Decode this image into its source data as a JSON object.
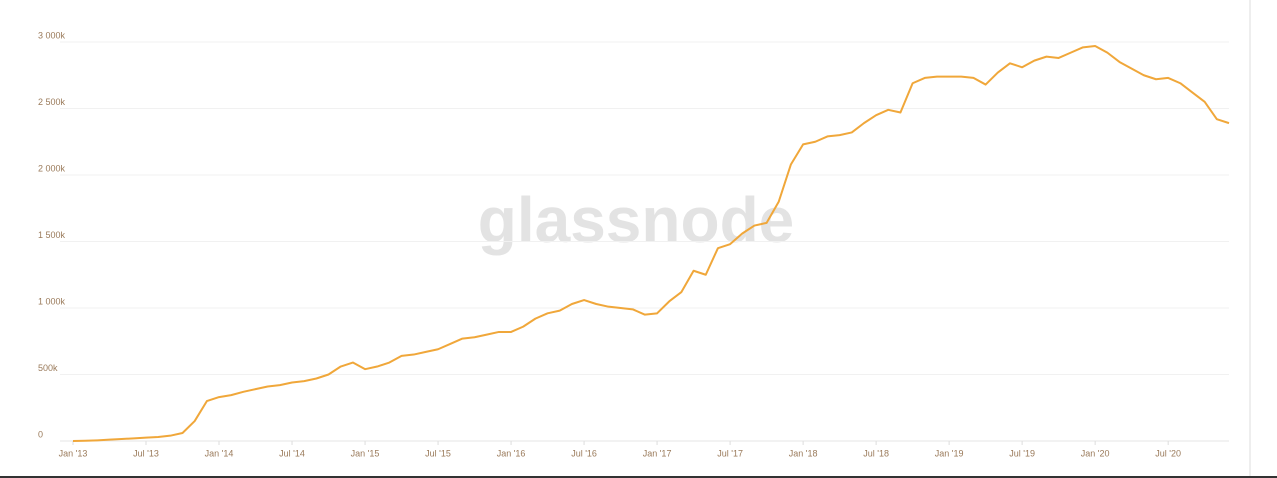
{
  "watermark": "glassnode",
  "chart_data": {
    "type": "line",
    "x": [
      "2013-01",
      "2013-02",
      "2013-03",
      "2013-04",
      "2013-05",
      "2013-06",
      "2013-07",
      "2013-08",
      "2013-09",
      "2013-10",
      "2013-11",
      "2013-12",
      "2014-01",
      "2014-02",
      "2014-03",
      "2014-04",
      "2014-05",
      "2014-06",
      "2014-07",
      "2014-08",
      "2014-09",
      "2014-10",
      "2014-11",
      "2014-12",
      "2015-01",
      "2015-02",
      "2015-03",
      "2015-04",
      "2015-05",
      "2015-06",
      "2015-07",
      "2015-08",
      "2015-09",
      "2015-10",
      "2015-11",
      "2015-12",
      "2016-01",
      "2016-02",
      "2016-03",
      "2016-04",
      "2016-05",
      "2016-06",
      "2016-07",
      "2016-08",
      "2016-09",
      "2016-10",
      "2016-11",
      "2016-12",
      "2017-01",
      "2017-02",
      "2017-03",
      "2017-04",
      "2017-05",
      "2017-06",
      "2017-07",
      "2017-08",
      "2017-09",
      "2017-10",
      "2017-11",
      "2017-12",
      "2018-01",
      "2018-02",
      "2018-03",
      "2018-04",
      "2018-05",
      "2018-06",
      "2018-07",
      "2018-08",
      "2018-09",
      "2018-10",
      "2018-11",
      "2018-12",
      "2019-01",
      "2019-02",
      "2019-03",
      "2019-04",
      "2019-05",
      "2019-06",
      "2019-07",
      "2019-08",
      "2019-09",
      "2019-10",
      "2019-11",
      "2019-12",
      "2020-01",
      "2020-02",
      "2020-03",
      "2020-04",
      "2020-05",
      "2020-06",
      "2020-07",
      "2020-08",
      "2020-09",
      "2020-10",
      "2020-11",
      "2020-12"
    ],
    "series": [
      {
        "color": "#f0a73a",
        "values": [
          0,
          2,
          5,
          10,
          15,
          20,
          25,
          30,
          40,
          60,
          150,
          300,
          330,
          345,
          370,
          390,
          410,
          420,
          440,
          450,
          470,
          500,
          560,
          590,
          540,
          560,
          590,
          640,
          650,
          670,
          690,
          730,
          770,
          780,
          800,
          820,
          820,
          860,
          920,
          960,
          980,
          1030,
          1060,
          1030,
          1010,
          1000,
          990,
          950,
          960,
          1050,
          1120,
          1280,
          1250,
          1450,
          1480,
          1560,
          1620,
          1640,
          1800,
          2080,
          2230,
          2250,
          2290,
          2300,
          2320,
          2390,
          2450,
          2490,
          2470,
          2690,
          2730,
          2740,
          2740,
          2740,
          2730,
          2680,
          2770,
          2840,
          2810,
          2860,
          2890,
          2880,
          2920,
          2960,
          2970,
          2920,
          2850,
          2800,
          2750,
          2720,
          2730,
          2690,
          2620,
          2550,
          2420,
          2390
        ]
      }
    ],
    "xlim": [
      "2013-01",
      "2020-12"
    ],
    "xticks": [
      {
        "value": "2013-01",
        "label": "Jan '13"
      },
      {
        "value": "2013-07",
        "label": "Jul '13"
      },
      {
        "value": "2014-01",
        "label": "Jan '14"
      },
      {
        "value": "2014-07",
        "label": "Jul '14"
      },
      {
        "value": "2015-01",
        "label": "Jan '15"
      },
      {
        "value": "2015-07",
        "label": "Jul '15"
      },
      {
        "value": "2016-01",
        "label": "Jan '16"
      },
      {
        "value": "2016-07",
        "label": "Jul '16"
      },
      {
        "value": "2017-01",
        "label": "Jan '17"
      },
      {
        "value": "2017-07",
        "label": "Jul '17"
      },
      {
        "value": "2018-01",
        "label": "Jan '18"
      },
      {
        "value": "2018-07",
        "label": "Jul '18"
      },
      {
        "value": "2019-01",
        "label": "Jan '19"
      },
      {
        "value": "2019-07",
        "label": "Jul '19"
      },
      {
        "value": "2020-01",
        "label": "Jan '20"
      },
      {
        "value": "2020-07",
        "label": "Jul '20"
      }
    ],
    "ylim": [
      0,
      3000
    ],
    "yticks": [
      0,
      {
        "value": 500,
        "label": "500k"
      },
      {
        "value": 1000,
        "label": "1 000k"
      },
      {
        "value": 1500,
        "label": "1 500k"
      },
      {
        "value": 2000,
        "label": "2 000k"
      },
      {
        "value": 2500,
        "label": "2 500k"
      },
      {
        "value": 3000,
        "label": "3 000k"
      }
    ],
    "grid": true
  }
}
